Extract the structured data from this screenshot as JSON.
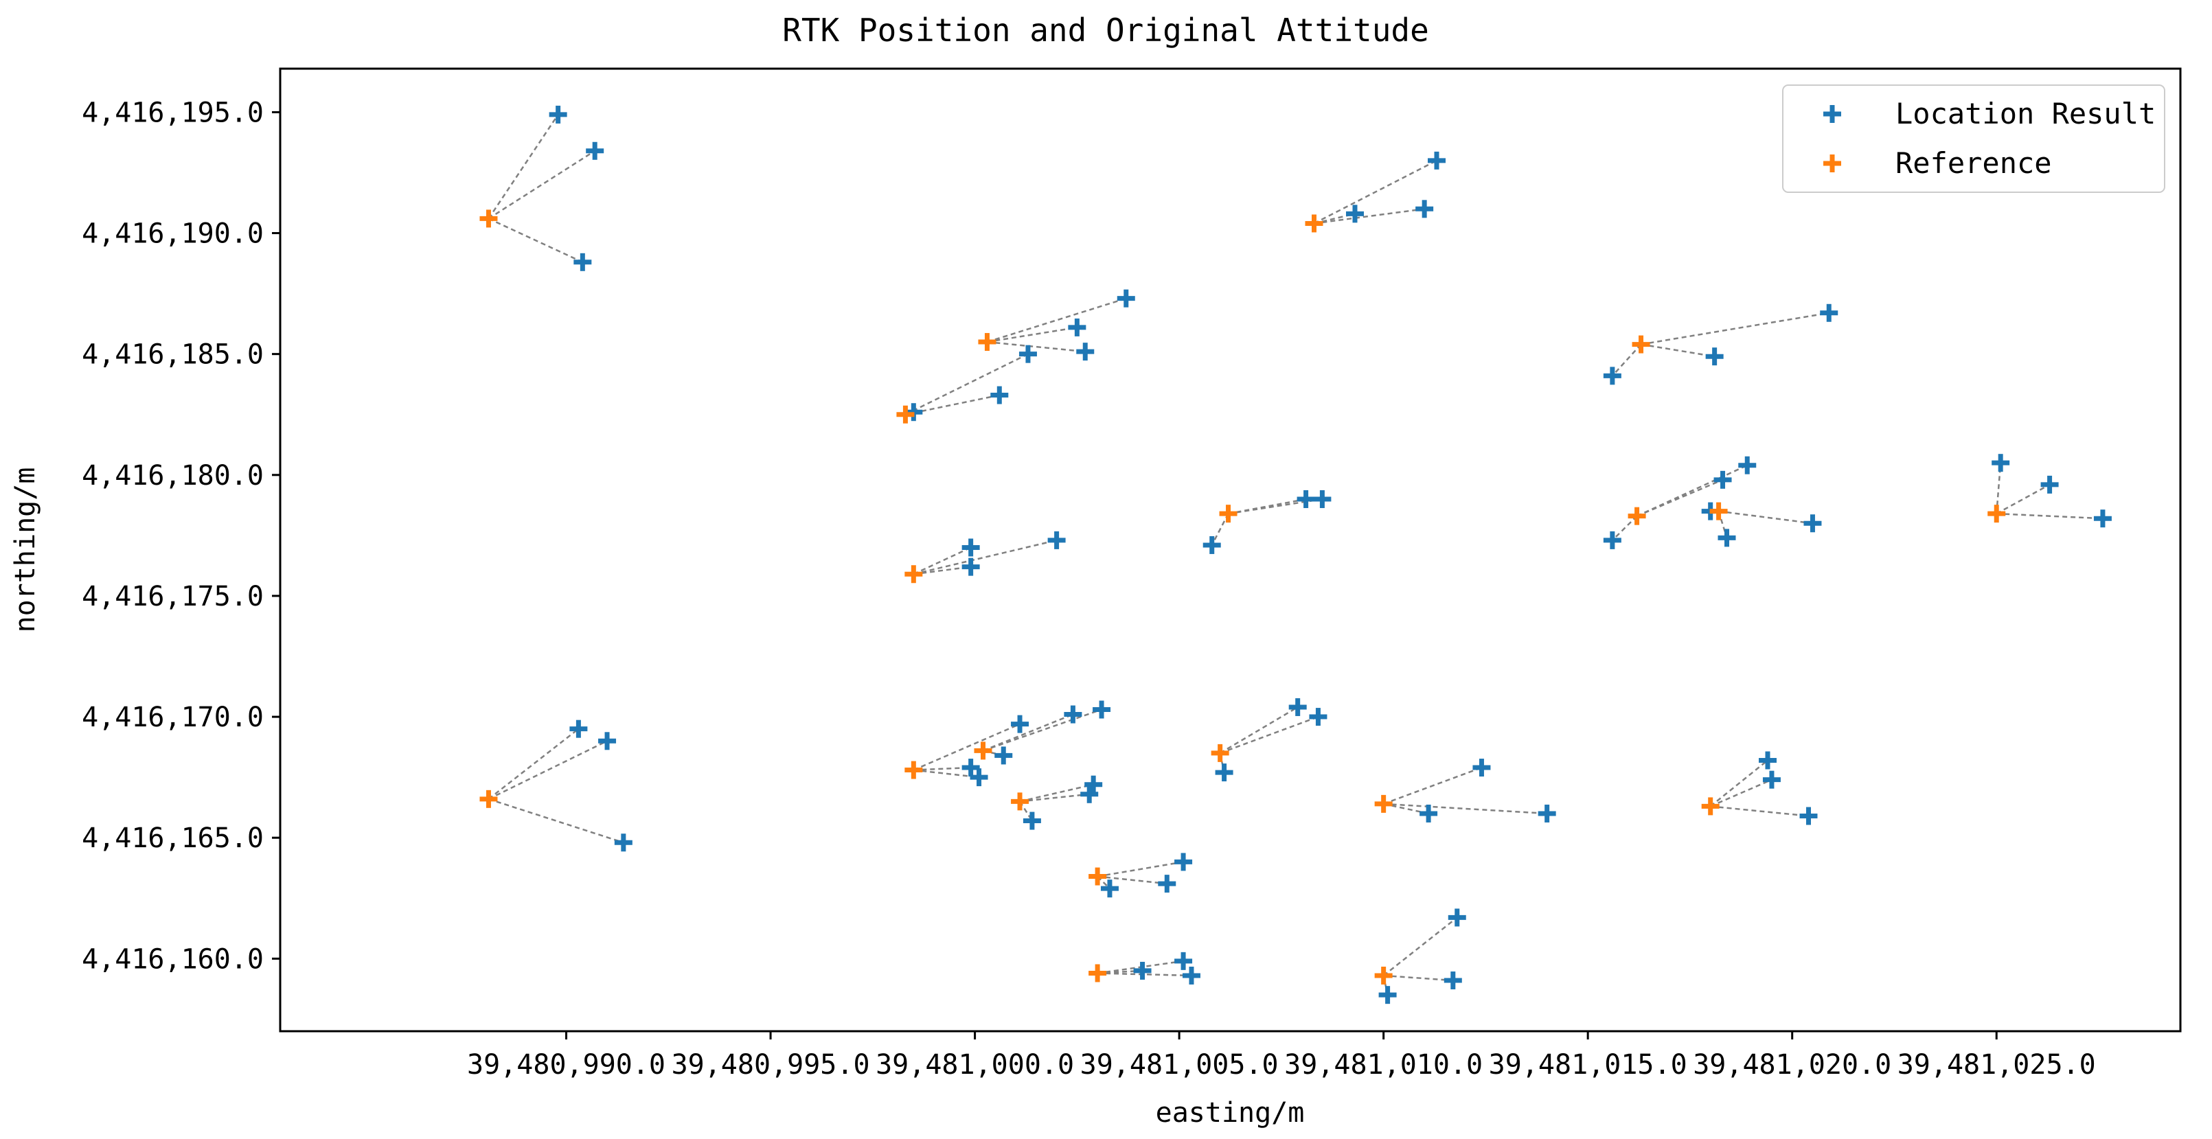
{
  "chart_data": {
    "type": "scatter",
    "title": "RTK Position and Original Attitude",
    "xlabel": "easting/m",
    "ylabel": "northing/m",
    "xlim": [
      39480983.0,
      39481029.5
    ],
    "ylim": [
      4416157.0,
      4416196.8
    ],
    "xticks": [
      39480990.0,
      39480995.0,
      39481000.0,
      39481005.0,
      39481010.0,
      39481015.0,
      39481020.0,
      39481025.0
    ],
    "xtick_labels": [
      "39,480,990.0",
      "39,480,995.0",
      "39,481,000.0",
      "39,481,005.0",
      "39,481,010.0",
      "39,481,015.0",
      "39,481,020.0",
      "39,481,025.0"
    ],
    "yticks": [
      4416160.0,
      4416165.0,
      4416170.0,
      4416175.0,
      4416180.0,
      4416185.0,
      4416190.0,
      4416195.0
    ],
    "ytick_labels": [
      "4,416,160.0",
      "4,416,165.0",
      "4,416,170.0",
      "4,416,175.0",
      "4,416,180.0",
      "4,416,185.0",
      "4,416,190.0",
      "4,416,195.0"
    ],
    "grid": false,
    "legend_position": "top-right",
    "colors": {
      "location": "#1f77b4",
      "reference": "#ff7f0e",
      "connector": "#808080",
      "axes": "#000000"
    },
    "series": [
      {
        "name": "Location Result",
        "marker": "plus",
        "color": "#1f77b4"
      },
      {
        "name": "Reference",
        "marker": "plus",
        "color": "#ff7f0e"
      }
    ],
    "groups": [
      {
        "reference": [
          39480988.1,
          4416190.6
        ],
        "locations": [
          [
            39480989.8,
            4416194.9
          ],
          [
            39480990.7,
            4416193.4
          ],
          [
            39480990.4,
            4416188.8
          ]
        ]
      },
      {
        "reference": [
          39481008.3,
          4416190.4
        ],
        "locations": [
          [
            39481011.3,
            4416193.0
          ],
          [
            39481009.3,
            4416190.8
          ],
          [
            39481011.0,
            4416191.0
          ]
        ]
      },
      {
        "reference": [
          39481000.3,
          4416185.5
        ],
        "locations": [
          [
            39481003.7,
            4416187.3
          ],
          [
            39481002.5,
            4416186.1
          ],
          [
            39481002.7,
            4416185.1
          ]
        ]
      },
      {
        "reference": [
          39480998.3,
          4416182.5
        ],
        "locations": [
          [
            39481001.3,
            4416185.0
          ],
          [
            39481000.6,
            4416183.3
          ],
          [
            39480998.5,
            4416182.6
          ]
        ]
      },
      {
        "reference": [
          39481016.3,
          4416185.4
        ],
        "locations": [
          [
            39481020.9,
            4416186.7
          ],
          [
            39481018.1,
            4416184.9
          ],
          [
            39481015.6,
            4416184.1
          ]
        ]
      },
      {
        "reference": [
          39480998.5,
          4416175.9
        ],
        "locations": [
          [
            39480999.9,
            4416177.0
          ],
          [
            39480999.9,
            4416176.2
          ],
          [
            39481002.0,
            4416177.3
          ]
        ]
      },
      {
        "reference": [
          39481006.2,
          4416178.4
        ],
        "locations": [
          [
            39481008.1,
            4416179.0
          ],
          [
            39481008.5,
            4416179.0
          ],
          [
            39481005.8,
            4416177.1
          ]
        ]
      },
      {
        "reference": [
          39481016.2,
          4416178.3
        ],
        "locations": [
          [
            39481018.3,
            4416179.8
          ],
          [
            39481018.9,
            4416180.4
          ],
          [
            39481015.6,
            4416177.3
          ]
        ]
      },
      {
        "reference": [
          39481018.2,
          4416178.5
        ],
        "locations": [
          [
            39481020.5,
            4416178.0
          ],
          [
            39481018.4,
            4416177.4
          ],
          [
            39481018.0,
            4416178.5
          ]
        ]
      },
      {
        "reference": [
          39481025.0,
          4416178.4
        ],
        "locations": [
          [
            39481025.1,
            4416180.5
          ],
          [
            39481026.3,
            4416179.6
          ],
          [
            39481027.6,
            4416178.2
          ]
        ]
      },
      {
        "reference": [
          39480988.1,
          4416166.6
        ],
        "locations": [
          [
            39480990.3,
            4416169.5
          ],
          [
            39480991.0,
            4416169.0
          ],
          [
            39480991.4,
            4416164.8
          ]
        ]
      },
      {
        "reference": [
          39480998.5,
          4416167.8
        ],
        "locations": [
          [
            39481001.1,
            4416169.7
          ],
          [
            39480999.9,
            4416167.9
          ],
          [
            39481000.1,
            4416167.5
          ]
        ]
      },
      {
        "reference": [
          39481000.2,
          4416168.6
        ],
        "locations": [
          [
            39481003.1,
            4416170.3
          ],
          [
            39481002.4,
            4416170.1
          ],
          [
            39481000.7,
            4416168.4
          ]
        ]
      },
      {
        "reference": [
          39481001.1,
          4416166.5
        ],
        "locations": [
          [
            39481002.9,
            4416167.2
          ],
          [
            39481002.8,
            4416166.8
          ],
          [
            39481001.4,
            4416165.7
          ]
        ]
      },
      {
        "reference": [
          39481006.0,
          4416168.5
        ],
        "locations": [
          [
            39481007.9,
            4416170.4
          ],
          [
            39481008.4,
            4416170.0
          ],
          [
            39481006.1,
            4416167.7
          ]
        ]
      },
      {
        "reference": [
          39481010.0,
          4416166.4
        ],
        "locations": [
          [
            39481012.4,
            4416167.9
          ],
          [
            39481014.0,
            4416166.0
          ],
          [
            39481011.1,
            4416166.0
          ]
        ]
      },
      {
        "reference": [
          39481018.0,
          4416166.3
        ],
        "locations": [
          [
            39481019.4,
            4416168.2
          ],
          [
            39481019.5,
            4416167.4
          ],
          [
            39481020.4,
            4416165.9
          ]
        ]
      },
      {
        "reference": [
          39481003.0,
          4416163.4
        ],
        "locations": [
          [
            39481005.1,
            4416164.0
          ],
          [
            39481004.7,
            4416163.1
          ],
          [
            39481003.3,
            4416162.9
          ]
        ]
      },
      {
        "reference": [
          39481003.0,
          4416159.4
        ],
        "locations": [
          [
            39481005.1,
            4416159.9
          ],
          [
            39481005.3,
            4416159.3
          ],
          [
            39481004.1,
            4416159.5
          ]
        ]
      },
      {
        "reference": [
          39481010.0,
          4416159.3
        ],
        "locations": [
          [
            39481011.8,
            4416161.7
          ],
          [
            39481011.7,
            4416159.1
          ],
          [
            39481010.1,
            4416158.5
          ]
        ]
      }
    ]
  }
}
